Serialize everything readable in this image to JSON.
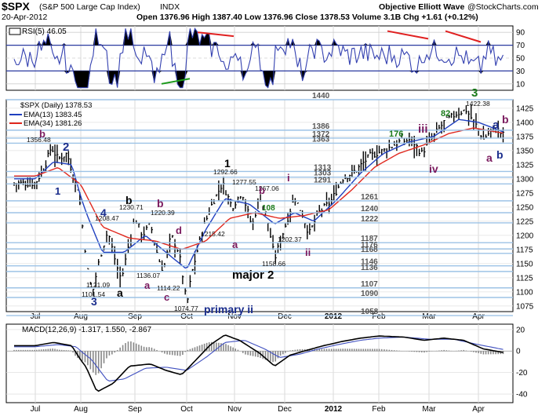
{
  "header": {
    "symbol": "$SPX",
    "name": "(S&P 500 Large Cap Index)",
    "exchange": "INDX",
    "date": "20-Apr-2012",
    "ohlc": "Open 1376.96  High 1387.40  Low 1376.96  Close 1378.53  Volume 3.1B  Chg +1.61 (+0.12%)",
    "watermark": "Objective Elliott Wave",
    "copyright": "@StockCharts.com"
  },
  "rsi_panel": {
    "label": "RSI(5) 46.05",
    "ticks": [
      "90",
      "70",
      "50",
      "30",
      "10"
    ],
    "tick_values": [
      90,
      70,
      50,
      30,
      10
    ]
  },
  "price_panel": {
    "legend_title": "$SPX (Daily) 1378.53",
    "legend_ema13": "EMA(13) 1383.45",
    "legend_ema34": "EMA(34) 1381.26",
    "ticks": [
      "1425",
      "1400",
      "1375",
      "1350",
      "1325",
      "1300",
      "1275",
      "1250",
      "1225",
      "1200",
      "1175",
      "1150",
      "1125",
      "1100",
      "1075"
    ],
    "tick_values": [
      1425,
      1400,
      1375,
      1350,
      1325,
      1300,
      1275,
      1250,
      1225,
      1200,
      1175,
      1150,
      1125,
      1100,
      1075
    ],
    "levels": [
      1440,
      1386,
      1372,
      1363,
      1313,
      1303,
      1291,
      1261,
      1240,
      1222,
      1187,
      1176,
      1168,
      1146,
      1136,
      1107,
      1090,
      1058
    ],
    "level_labels": [
      "1440",
      "1386",
      "1372",
      "1363",
      "1313",
      "1303",
      "1291",
      "1261",
      "1240",
      "1222",
      "1187",
      "1176",
      "1168",
      "1146",
      "1136",
      "1107",
      "1090",
      "1058"
    ],
    "price_notes": [
      "1356.48",
      "1292.66",
      "1277.55",
      "1267.06",
      "1230.71",
      "1220.39",
      "1208.47",
      "1215.42",
      "1202.37",
      "1158.66",
      "1136.07",
      "1121.09",
      "1114.22",
      "1101.54",
      "1074.77",
      "1422.38"
    ],
    "wave_labels": [
      "b",
      "2",
      "1",
      "4",
      "3",
      "b",
      "a",
      "b",
      "a",
      "c",
      "d",
      "1",
      "b",
      "a",
      "i",
      "108",
      "ii",
      "major 2",
      "primary ii",
      "176",
      "iii",
      "iv",
      "82",
      "3",
      "a",
      "b",
      "a",
      "b"
    ]
  },
  "macd_panel": {
    "label": "MACD(12,26,9) -1.317, 1.550, -2.867",
    "ticks": [
      "20",
      "0",
      "-20",
      "-40"
    ],
    "tick_values": [
      20,
      0,
      -20,
      -40
    ]
  },
  "x_axis": {
    "months": [
      "Jul",
      "Aug",
      "Sep",
      "Oct",
      "Nov",
      "Dec",
      "2012",
      "Feb",
      "Mar",
      "Apr"
    ]
  },
  "colors": {
    "price": "#000000",
    "ema13": "#1f3fbf",
    "ema34": "#e0281e",
    "rsi": "#3340b0",
    "rsi_fill": "#000000",
    "level": "#9dc3e6",
    "wave_blue": "#1a2d8c",
    "wave_purple": "#7a1a5e",
    "wave_green": "#1a7a1a",
    "trend_red": "#e02020",
    "trend_green": "#1a9a1a",
    "macd_signal": "#4050c0"
  },
  "chart_data": {
    "type": "line",
    "x_months": [
      "Jul",
      "Aug",
      "Sep",
      "Oct",
      "Nov",
      "Dec",
      "2012",
      "Feb",
      "Mar",
      "Apr"
    ],
    "series": [
      {
        "name": "$SPX (Daily)",
        "anchors_month_index_value": [
          [
            0.0,
            1292
          ],
          [
            0.2,
            1320
          ],
          [
            0.35,
            1356
          ],
          [
            0.5,
            1335
          ],
          [
            0.7,
            1345
          ],
          [
            0.85,
            1300
          ],
          [
            0.95,
            1280
          ],
          [
            1.05,
            1200
          ],
          [
            1.15,
            1120
          ],
          [
            1.22,
            1101
          ],
          [
            1.35,
            1160
          ],
          [
            1.5,
            1208
          ],
          [
            1.65,
            1150
          ],
          [
            1.75,
            1121
          ],
          [
            1.9,
            1190
          ],
          [
            2.0,
            1230
          ],
          [
            2.15,
            1200
          ],
          [
            2.3,
            1220
          ],
          [
            2.45,
            1160
          ],
          [
            2.55,
            1136
          ],
          [
            2.7,
            1200
          ],
          [
            2.85,
            1170
          ],
          [
            2.95,
            1114
          ],
          [
            3.0,
            1074
          ],
          [
            3.1,
            1130
          ],
          [
            3.3,
            1200
          ],
          [
            3.5,
            1250
          ],
          [
            3.75,
            1292
          ],
          [
            3.95,
            1250
          ],
          [
            4.15,
            1277
          ],
          [
            4.35,
            1215
          ],
          [
            4.5,
            1270
          ],
          [
            4.65,
            1230
          ],
          [
            4.8,
            1158
          ],
          [
            4.95,
            1200
          ],
          [
            5.2,
            1267
          ],
          [
            5.35,
            1240
          ],
          [
            5.5,
            1202
          ],
          [
            5.7,
            1240
          ],
          [
            5.95,
            1260
          ],
          [
            6.2,
            1300
          ],
          [
            6.5,
            1315
          ],
          [
            6.8,
            1340
          ],
          [
            7.1,
            1350
          ],
          [
            7.4,
            1365
          ],
          [
            7.65,
            1370
          ],
          [
            7.85,
            1345
          ],
          [
            8.05,
            1370
          ],
          [
            8.3,
            1400
          ],
          [
            8.55,
            1415
          ],
          [
            8.75,
            1422
          ],
          [
            8.95,
            1395
          ],
          [
            9.1,
            1370
          ],
          [
            9.3,
            1390
          ],
          [
            9.5,
            1378
          ]
        ]
      },
      {
        "name": "EMA(13)",
        "anchors_month_index_value": [
          [
            0.0,
            1300
          ],
          [
            0.4,
            1330
          ],
          [
            0.8,
            1325
          ],
          [
            1.1,
            1240
          ],
          [
            1.4,
            1170
          ],
          [
            1.8,
            1170
          ],
          [
            2.2,
            1200
          ],
          [
            2.6,
            1170
          ],
          [
            3.0,
            1140
          ],
          [
            3.4,
            1210
          ],
          [
            3.8,
            1265
          ],
          [
            4.3,
            1255
          ],
          [
            4.8,
            1220
          ],
          [
            5.2,
            1240
          ],
          [
            5.6,
            1225
          ],
          [
            6.1,
            1265
          ],
          [
            6.6,
            1310
          ],
          [
            7.1,
            1345
          ],
          [
            7.6,
            1365
          ],
          [
            8.1,
            1375
          ],
          [
            8.6,
            1405
          ],
          [
            9.0,
            1400
          ],
          [
            9.5,
            1383
          ]
        ]
      },
      {
        "name": "EMA(34)",
        "anchors_month_index_value": [
          [
            0.0,
            1305
          ],
          [
            0.5,
            1320
          ],
          [
            1.0,
            1290
          ],
          [
            1.4,
            1215
          ],
          [
            1.9,
            1195
          ],
          [
            2.4,
            1190
          ],
          [
            2.9,
            1175
          ],
          [
            3.4,
            1190
          ],
          [
            3.9,
            1230
          ],
          [
            4.4,
            1240
          ],
          [
            4.9,
            1230
          ],
          [
            5.4,
            1235
          ],
          [
            5.9,
            1245
          ],
          [
            6.4,
            1280
          ],
          [
            6.9,
            1320
          ],
          [
            7.4,
            1345
          ],
          [
            7.9,
            1360
          ],
          [
            8.4,
            1380
          ],
          [
            8.9,
            1390
          ],
          [
            9.5,
            1381
          ]
        ]
      }
    ],
    "price_ylim": [
      1065,
      1440
    ],
    "rsi_ylim": [
      0,
      100
    ],
    "macd_ylim": [
      -48,
      25
    ],
    "macd_line_anchors": [
      [
        0,
        5
      ],
      [
        0.4,
        8
      ],
      [
        0.8,
        5
      ],
      [
        1.1,
        -15
      ],
      [
        1.3,
        -38
      ],
      [
        1.6,
        -30
      ],
      [
        1.9,
        -14
      ],
      [
        2.3,
        -12
      ],
      [
        2.6,
        -18
      ],
      [
        2.9,
        -22
      ],
      [
        3.2,
        -8
      ],
      [
        3.5,
        6
      ],
      [
        3.8,
        15
      ],
      [
        4.1,
        10
      ],
      [
        4.5,
        -2
      ],
      [
        4.8,
        -14
      ],
      [
        5.1,
        -4
      ],
      [
        5.4,
        0
      ],
      [
        5.8,
        5
      ],
      [
        6.2,
        9
      ],
      [
        6.6,
        12
      ],
      [
        7.0,
        14
      ],
      [
        7.5,
        13
      ],
      [
        7.9,
        10
      ],
      [
        8.3,
        12
      ],
      [
        8.7,
        10
      ],
      [
        9.1,
        2
      ],
      [
        9.5,
        -1.3
      ]
    ],
    "macd_signal_anchors": [
      [
        0,
        4
      ],
      [
        0.5,
        6
      ],
      [
        0.9,
        4
      ],
      [
        1.2,
        -8
      ],
      [
        1.5,
        -28
      ],
      [
        1.8,
        -26
      ],
      [
        2.2,
        -16
      ],
      [
        2.6,
        -15
      ],
      [
        3.0,
        -18
      ],
      [
        3.4,
        -6
      ],
      [
        3.8,
        8
      ],
      [
        4.2,
        10
      ],
      [
        4.6,
        2
      ],
      [
        4.9,
        -6
      ],
      [
        5.3,
        -3
      ],
      [
        5.7,
        2
      ],
      [
        6.1,
        6
      ],
      [
        6.6,
        10
      ],
      [
        7.0,
        12
      ],
      [
        7.5,
        13
      ],
      [
        8.0,
        11
      ],
      [
        8.5,
        11
      ],
      [
        9.0,
        6
      ],
      [
        9.5,
        1.5
      ]
    ],
    "grid": true,
    "legend": "top-left"
  }
}
